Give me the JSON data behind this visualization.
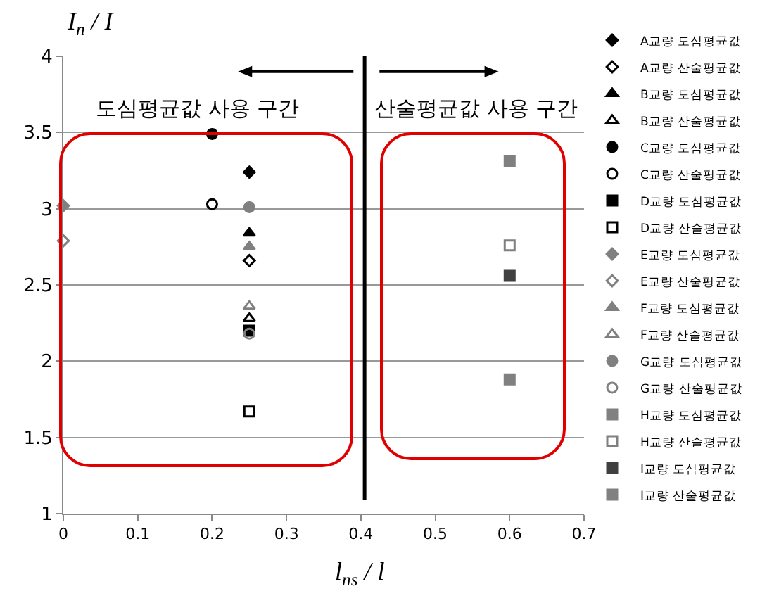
{
  "chart_data": {
    "type": "scatter",
    "xlabel": "l$_{ns}$ / l",
    "ylabel": "I$_{n}$ / I",
    "xlim": [
      0,
      0.7
    ],
    "xticks": [
      0,
      0.1,
      0.2,
      0.3,
      0.4,
      0.5,
      0.6,
      0.7
    ],
    "ylim": [
      1,
      4
    ],
    "yticks": [
      1,
      1.5,
      2,
      2.5,
      3,
      3.5,
      4
    ],
    "grid": "y",
    "legend": "right",
    "annotations": [
      "도심평균값 사용 구간",
      "산술평균값 사용 구간"
    ],
    "ref_lines": [
      {
        "axis": "x",
        "value": 0.405,
        "color": "#000000"
      }
    ],
    "series": [
      {
        "name": "A교량 도심평균값",
        "color": "#000000",
        "marker": "diamond",
        "x": [
          0.25
        ],
        "values": [
          3.24
        ]
      },
      {
        "name": "A교량 산술평균값",
        "color": "#000000",
        "marker": "diamond-open",
        "x": [
          0.25
        ],
        "values": [
          2.66
        ]
      },
      {
        "name": "B교량 도심평균값",
        "color": "#000000",
        "marker": "triangle",
        "x": [
          0.25
        ],
        "values": [
          2.84
        ]
      },
      {
        "name": "B교량 산술평균값",
        "color": "#000000",
        "marker": "triangle-open",
        "x": [
          0.25
        ],
        "values": [
          2.28
        ]
      },
      {
        "name": "C교량 도심평균값",
        "color": "#000000",
        "marker": "circle",
        "x": [
          0.2
        ],
        "values": [
          3.49
        ]
      },
      {
        "name": "C교량 산술평균값",
        "color": "#000000",
        "marker": "circle-open",
        "x": [
          0.2
        ],
        "values": [
          3.03
        ]
      },
      {
        "name": "D교량 도심평균값",
        "color": "#000000",
        "marker": "square",
        "x": [
          0.25
        ],
        "values": [
          2.2
        ]
      },
      {
        "name": "D교량 산술평균값",
        "color": "#000000",
        "marker": "square-open",
        "x": [
          0.25
        ],
        "values": [
          1.67
        ]
      },
      {
        "name": "E교량 도심평균값",
        "color": "#808080",
        "marker": "diamond",
        "x": [
          0
        ],
        "values": [
          3.02
        ]
      },
      {
        "name": "E교량 산술평균값",
        "color": "#808080",
        "marker": "diamond-open",
        "x": [
          0
        ],
        "values": [
          2.79
        ]
      },
      {
        "name": "F교량 도심평균값",
        "color": "#808080",
        "marker": "triangle",
        "x": [
          0.25
        ],
        "values": [
          2.75
        ]
      },
      {
        "name": "F교량 산술평균값",
        "color": "#808080",
        "marker": "triangle-open",
        "x": [
          0.25
        ],
        "values": [
          2.36
        ]
      },
      {
        "name": "G교량 도심평균값",
        "color": "#808080",
        "marker": "circle",
        "x": [
          0.25
        ],
        "values": [
          3.01
        ]
      },
      {
        "name": "G교량 산술평균값",
        "color": "#808080",
        "marker": "circle-open",
        "x": [
          0.25
        ],
        "values": [
          2.18
        ]
      },
      {
        "name": "H교량 도심평균값",
        "color": "#808080",
        "marker": "square",
        "x": [
          0.6
        ],
        "values": [
          3.31
        ]
      },
      {
        "name": "H교량 산술평균값",
        "color": "#808080",
        "marker": "square-open",
        "x": [
          0.6
        ],
        "values": [
          2.76
        ]
      },
      {
        "name": "I교량 도심평균값",
        "color": "#404040",
        "marker": "square",
        "x": [
          0.6
        ],
        "values": [
          2.56
        ]
      },
      {
        "name": "I교량 산술평균값",
        "color": "#808080",
        "marker": "square",
        "x": [
          0.6
        ],
        "values": [
          1.88
        ]
      }
    ]
  }
}
